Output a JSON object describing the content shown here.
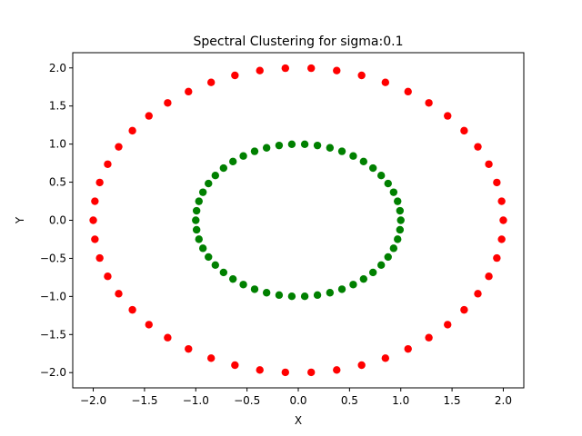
{
  "chart_data": {
    "type": "scatter",
    "title": "Spectral Clustering for sigma:0.1",
    "xlabel": "X",
    "ylabel": "Y",
    "xlim": [
      -2.2,
      2.2
    ],
    "ylim": [
      -2.2,
      2.2
    ],
    "grid": false,
    "xticks": [
      -2.0,
      -1.5,
      -1.0,
      -0.5,
      0.0,
      0.5,
      1.0,
      1.5,
      2.0
    ],
    "yticks": [
      -2.0,
      -1.5,
      -1.0,
      -0.5,
      0.0,
      0.5,
      1.0,
      1.5,
      2.0
    ],
    "xtick_labels": [
      "−2.0",
      "−1.5",
      "−1.0",
      "−0.5",
      "0.0",
      "0.5",
      "1.0",
      "1.5",
      "2.0"
    ],
    "ytick_labels": [
      "−2.0",
      "−1.5",
      "−1.0",
      "−0.5",
      "0.0",
      "0.5",
      "1.0",
      "1.5",
      "2.0"
    ],
    "series": [
      {
        "color": "#ff0000",
        "points": [
          [
            2.0,
            0.0
          ],
          [
            1.984,
            0.25
          ],
          [
            1.937,
            0.496
          ],
          [
            1.859,
            0.736
          ],
          [
            1.752,
            0.964
          ],
          [
            1.618,
            1.176
          ],
          [
            1.457,
            1.37
          ],
          [
            1.274,
            1.541
          ],
          [
            1.071,
            1.689
          ],
          [
            0.85,
            1.81
          ],
          [
            0.618,
            1.902
          ],
          [
            0.375,
            1.965
          ],
          [
            0.126,
            1.996
          ],
          [
            -0.126,
            1.996
          ],
          [
            -0.375,
            1.965
          ],
          [
            -0.618,
            1.902
          ],
          [
            -0.85,
            1.81
          ],
          [
            -1.071,
            1.689
          ],
          [
            -1.274,
            1.541
          ],
          [
            -1.457,
            1.37
          ],
          [
            -1.618,
            1.176
          ],
          [
            -1.752,
            0.964
          ],
          [
            -1.859,
            0.736
          ],
          [
            -1.937,
            0.496
          ],
          [
            -1.984,
            0.25
          ],
          [
            -2.0,
            0.0
          ],
          [
            -1.984,
            -0.25
          ],
          [
            -1.937,
            -0.496
          ],
          [
            -1.859,
            -0.736
          ],
          [
            -1.752,
            -0.964
          ],
          [
            -1.618,
            -1.176
          ],
          [
            -1.457,
            -1.37
          ],
          [
            -1.274,
            -1.541
          ],
          [
            -1.071,
            -1.689
          ],
          [
            -0.85,
            -1.81
          ],
          [
            -0.618,
            -1.902
          ],
          [
            -0.375,
            -1.965
          ],
          [
            -0.126,
            -1.996
          ],
          [
            0.126,
            -1.996
          ],
          [
            0.375,
            -1.965
          ],
          [
            0.618,
            -1.902
          ],
          [
            0.85,
            -1.81
          ],
          [
            1.071,
            -1.689
          ],
          [
            1.274,
            -1.541
          ],
          [
            1.457,
            -1.37
          ],
          [
            1.618,
            -1.176
          ],
          [
            1.752,
            -0.964
          ],
          [
            1.859,
            -0.736
          ],
          [
            1.937,
            -0.496
          ],
          [
            1.984,
            -0.25
          ]
        ]
      },
      {
        "color": "#008000",
        "points": [
          [
            1.0,
            0.0
          ],
          [
            0.992,
            0.125
          ],
          [
            0.969,
            0.249
          ],
          [
            0.93,
            0.368
          ],
          [
            0.876,
            0.482
          ],
          [
            0.809,
            0.588
          ],
          [
            0.729,
            0.685
          ],
          [
            0.637,
            0.771
          ],
          [
            0.536,
            0.844
          ],
          [
            0.426,
            0.905
          ],
          [
            0.309,
            0.951
          ],
          [
            0.187,
            0.982
          ],
          [
            0.063,
            0.998
          ],
          [
            -0.063,
            0.998
          ],
          [
            -0.187,
            0.982
          ],
          [
            -0.309,
            0.951
          ],
          [
            -0.426,
            0.905
          ],
          [
            -0.536,
            0.844
          ],
          [
            -0.637,
            0.771
          ],
          [
            -0.729,
            0.685
          ],
          [
            -0.809,
            0.588
          ],
          [
            -0.876,
            0.482
          ],
          [
            -0.93,
            0.368
          ],
          [
            -0.969,
            0.249
          ],
          [
            -0.992,
            0.125
          ],
          [
            -1.0,
            0.0
          ],
          [
            -0.992,
            -0.125
          ],
          [
            -0.969,
            -0.249
          ],
          [
            -0.93,
            -0.368
          ],
          [
            -0.876,
            -0.482
          ],
          [
            -0.809,
            -0.588
          ],
          [
            -0.729,
            -0.685
          ],
          [
            -0.637,
            -0.771
          ],
          [
            -0.536,
            -0.844
          ],
          [
            -0.426,
            -0.905
          ],
          [
            -0.309,
            -0.951
          ],
          [
            -0.187,
            -0.982
          ],
          [
            -0.063,
            -0.998
          ],
          [
            0.063,
            -0.998
          ],
          [
            0.187,
            -0.982
          ],
          [
            0.309,
            -0.951
          ],
          [
            0.426,
            -0.905
          ],
          [
            0.536,
            -0.844
          ],
          [
            0.637,
            -0.771
          ],
          [
            0.729,
            -0.685
          ],
          [
            0.809,
            -0.588
          ],
          [
            0.876,
            -0.482
          ],
          [
            0.93,
            -0.368
          ],
          [
            0.969,
            -0.249
          ],
          [
            0.992,
            -0.125
          ]
        ]
      }
    ]
  }
}
